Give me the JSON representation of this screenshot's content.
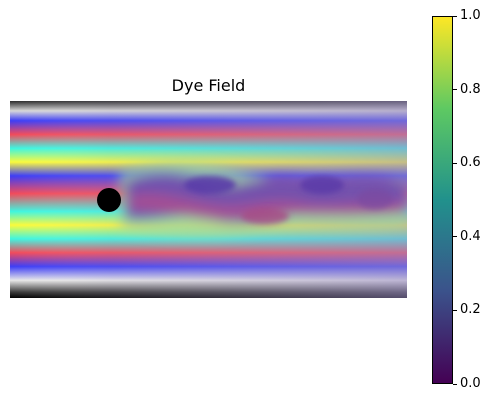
{
  "title": "Dye Field",
  "colorbar": {
    "colormap": "viridis",
    "min": 0.0,
    "max": 1.0,
    "ticks": [
      "0.0",
      "0.2",
      "0.4",
      "0.6",
      "0.8",
      "1.0"
    ],
    "stops": [
      "#440154",
      "#3b528b",
      "#21918c",
      "#5ec962",
      "#fde725"
    ]
  },
  "field": {
    "stripe_colors": [
      "#3d3df5",
      "#fafa3a",
      "#f24a5a",
      "#3ef5e0",
      "#f24a5a",
      "#3ef5e0",
      "#fafa3a",
      "#3d3df5"
    ],
    "wake_colors": [
      "#6a3fb0",
      "#b44c8a",
      "#a6e0a6"
    ],
    "obstacle_color": "#000000"
  }
}
